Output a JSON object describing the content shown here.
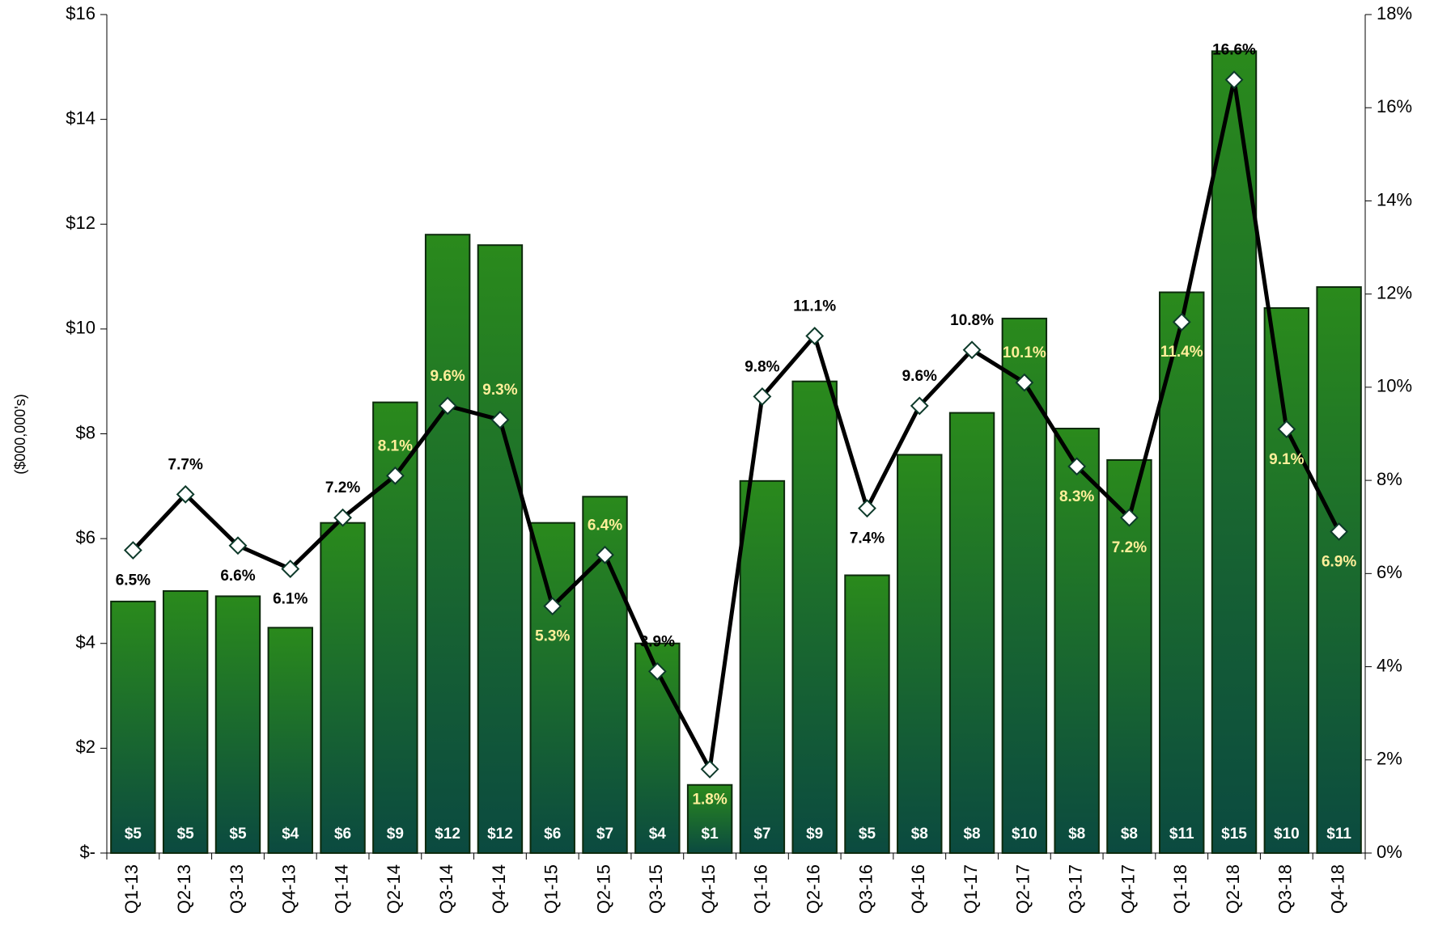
{
  "chart_data": {
    "type": "bar-line",
    "y_label": "($000,000's)",
    "categories": [
      "Q1-13",
      "Q2-13",
      "Q3-13",
      "Q4-13",
      "Q1-14",
      "Q2-14",
      "Q3-14",
      "Q4-14",
      "Q1-15",
      "Q2-15",
      "Q3-15",
      "Q4-15",
      "Q1-16",
      "Q2-16",
      "Q3-16",
      "Q4-16",
      "Q1-17",
      "Q2-17",
      "Q3-17",
      "Q4-17",
      "Q1-18",
      "Q2-18",
      "Q3-18",
      "Q4-18"
    ],
    "series": [
      {
        "type": "bar",
        "color": "#2a8a1c",
        "values": [
          4.8,
          5.0,
          4.9,
          4.3,
          6.3,
          8.6,
          11.8,
          11.6,
          6.3,
          6.8,
          4.0,
          1.3,
          7.1,
          9.0,
          5.3,
          7.6,
          8.4,
          10.2,
          8.1,
          7.5,
          10.7,
          15.3,
          10.4,
          10.8
        ],
        "value_labels": [
          "$5",
          "$5",
          "$5",
          "$4",
          "$6",
          "$9",
          "$12",
          "$12",
          "$6",
          "$7",
          "$4",
          "$1",
          "$7",
          "$9",
          "$5",
          "$8",
          "$8",
          "$10",
          "$8",
          "$8",
          "$11",
          "$15",
          "$10",
          "$11"
        ]
      },
      {
        "type": "line",
        "axis": "y2",
        "color": "#000000",
        "values": [
          6.5,
          7.7,
          6.6,
          6.1,
          7.2,
          8.1,
          9.6,
          9.3,
          5.3,
          6.4,
          3.9,
          1.8,
          9.8,
          11.1,
          7.4,
          9.6,
          10.8,
          10.1,
          8.3,
          7.2,
          11.4,
          16.6,
          9.1,
          6.9
        ],
        "value_labels": [
          "6.5%",
          "7.7%",
          "6.6%",
          "6.1%",
          "7.2%",
          "8.1%",
          "9.6%",
          "9.3%",
          "5.3%",
          "6.4%",
          "3.9%",
          "1.8%",
          "9.8%",
          "11.1%",
          "7.4%",
          "9.6%",
          "10.8%",
          "10.1%",
          "8.3%",
          "7.2%",
          "11.4%",
          "16.6%",
          "9.1%",
          "6.9%"
        ]
      }
    ],
    "ylim": [
      0,
      16
    ],
    "yticks": [
      {
        "value": 0,
        "label": "$-"
      },
      {
        "value": 2,
        "label": "$2"
      },
      {
        "value": 4,
        "label": "$4"
      },
      {
        "value": 6,
        "label": "$6"
      },
      {
        "value": 8,
        "label": "$8"
      },
      {
        "value": 10,
        "label": "$10"
      },
      {
        "value": 12,
        "label": "$12"
      },
      {
        "value": 14,
        "label": "$14"
      },
      {
        "value": 16,
        "label": "$16"
      }
    ],
    "y2lim": [
      0,
      18
    ],
    "y2ticks": [
      {
        "value": 0,
        "label": "0%"
      },
      {
        "value": 2,
        "label": "2%"
      },
      {
        "value": 4,
        "label": "4%"
      },
      {
        "value": 6,
        "label": "6%"
      },
      {
        "value": 8,
        "label": "8%"
      },
      {
        "value": 10,
        "label": "10%"
      },
      {
        "value": 12,
        "label": "12%"
      },
      {
        "value": 14,
        "label": "14%"
      },
      {
        "value": 16,
        "label": "16%"
      },
      {
        "value": 18,
        "label": "18%"
      }
    ],
    "grid": false
  }
}
